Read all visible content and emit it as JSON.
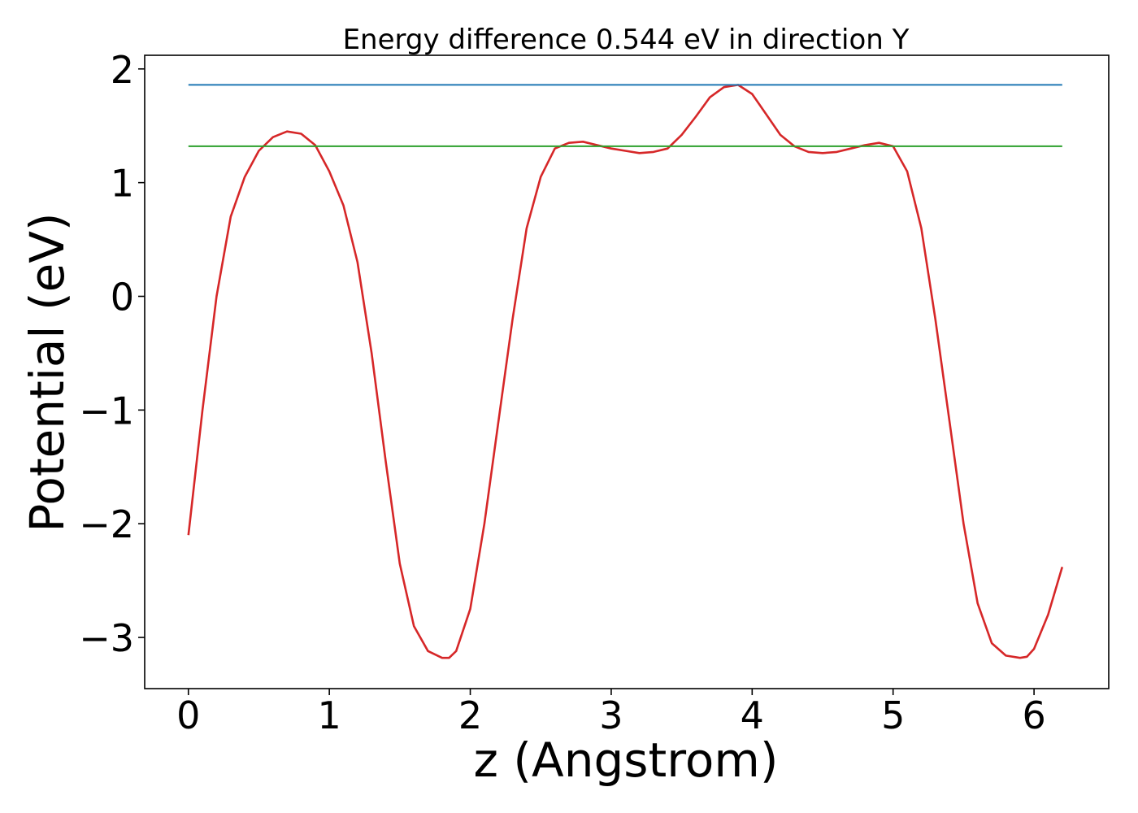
{
  "chart_data": {
    "type": "line",
    "title": "Energy difference 0.544 eV in direction Y",
    "xlabel": "z (Angstrom)",
    "ylabel": "Potential (eV)",
    "xlim": [
      -0.31,
      6.53
    ],
    "ylim": [
      -3.45,
      2.12
    ],
    "xticks": [
      0,
      1,
      2,
      3,
      4,
      5,
      6
    ],
    "yticks": [
      -3,
      -2,
      -1,
      0,
      1,
      2
    ],
    "xtick_labels": [
      "0",
      "1",
      "2",
      "3",
      "4",
      "5",
      "6"
    ],
    "ytick_labels": [
      "−3",
      "−2",
      "−1",
      "0",
      "1",
      "2"
    ],
    "grid": false,
    "legend": null,
    "series": [
      {
        "color": "#d62728",
        "x": [
          0.0,
          0.1,
          0.2,
          0.3,
          0.4,
          0.5,
          0.6,
          0.7,
          0.8,
          0.9,
          1.0,
          1.1,
          1.2,
          1.3,
          1.4,
          1.5,
          1.6,
          1.7,
          1.8,
          1.85,
          1.9,
          2.0,
          2.1,
          2.2,
          2.3,
          2.4,
          2.5,
          2.6,
          2.7,
          2.8,
          2.9,
          3.0,
          3.1,
          3.2,
          3.3,
          3.4,
          3.5,
          3.6,
          3.7,
          3.8,
          3.9,
          4.0,
          4.1,
          4.2,
          4.3,
          4.4,
          4.5,
          4.6,
          4.7,
          4.8,
          4.9,
          5.0,
          5.1,
          5.2,
          5.3,
          5.4,
          5.5,
          5.6,
          5.7,
          5.8,
          5.9,
          5.95,
          6.0,
          6.1,
          6.2
        ],
        "y": [
          -2.1,
          -1.0,
          0.0,
          0.7,
          1.05,
          1.28,
          1.4,
          1.45,
          1.43,
          1.33,
          1.1,
          0.8,
          0.3,
          -0.5,
          -1.45,
          -2.35,
          -2.9,
          -3.12,
          -3.18,
          -3.18,
          -3.12,
          -2.75,
          -2.0,
          -1.1,
          -0.2,
          0.6,
          1.05,
          1.3,
          1.35,
          1.36,
          1.33,
          1.3,
          1.28,
          1.26,
          1.27,
          1.3,
          1.42,
          1.58,
          1.75,
          1.84,
          1.86,
          1.78,
          1.6,
          1.42,
          1.32,
          1.27,
          1.26,
          1.27,
          1.3,
          1.33,
          1.35,
          1.32,
          1.1,
          0.6,
          -0.2,
          -1.1,
          -2.0,
          -2.7,
          -3.05,
          -3.16,
          -3.18,
          -3.17,
          -3.1,
          -2.8,
          -2.38
        ]
      },
      {
        "color": "#1f77b4",
        "x": [
          0.0,
          6.2
        ],
        "y": [
          1.86,
          1.86
        ]
      },
      {
        "color": "#2ca02c",
        "x": [
          0.0,
          6.2
        ],
        "y": [
          1.32,
          1.32
        ]
      }
    ]
  }
}
